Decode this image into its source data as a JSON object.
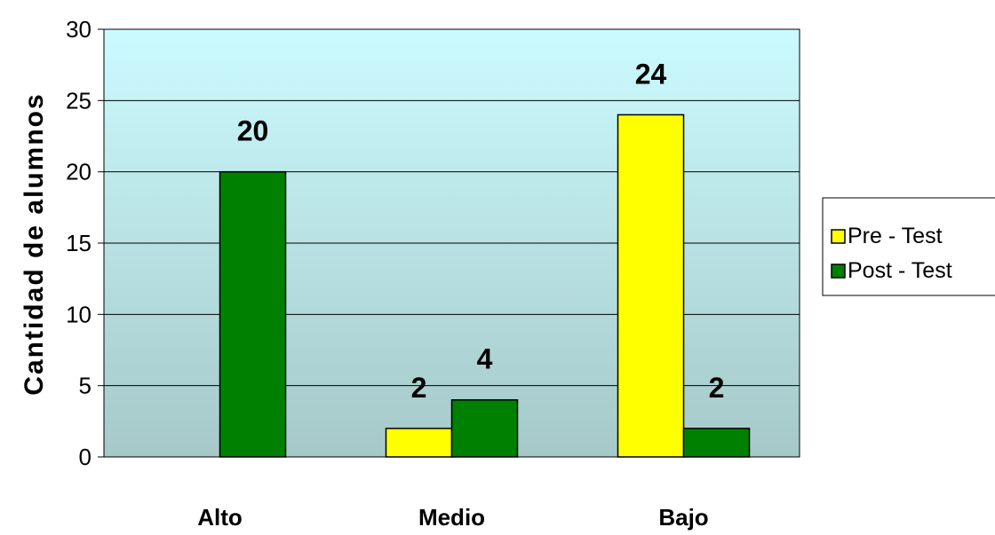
{
  "chart_data": {
    "type": "bar",
    "categories": [
      "Alto",
      "Medio",
      "Bajo"
    ],
    "series": [
      {
        "name": "Pre - Test",
        "values": [
          0,
          2,
          24
        ],
        "labels": [
          "",
          "2",
          "24"
        ],
        "color": "#ffff00"
      },
      {
        "name": "Post - Test",
        "values": [
          20,
          4,
          2
        ],
        "labels": [
          "20",
          "4",
          "2"
        ],
        "color": "#008000"
      }
    ],
    "ylabel": "Cantidad de alumnos",
    "xlabel": "",
    "ylim": [
      0,
      30
    ],
    "yticks": [
      0,
      5,
      10,
      15,
      20,
      25,
      30
    ],
    "grid": true,
    "legend": "right",
    "background_gradient": [
      "#cbfbff",
      "#a6c8c8"
    ]
  }
}
